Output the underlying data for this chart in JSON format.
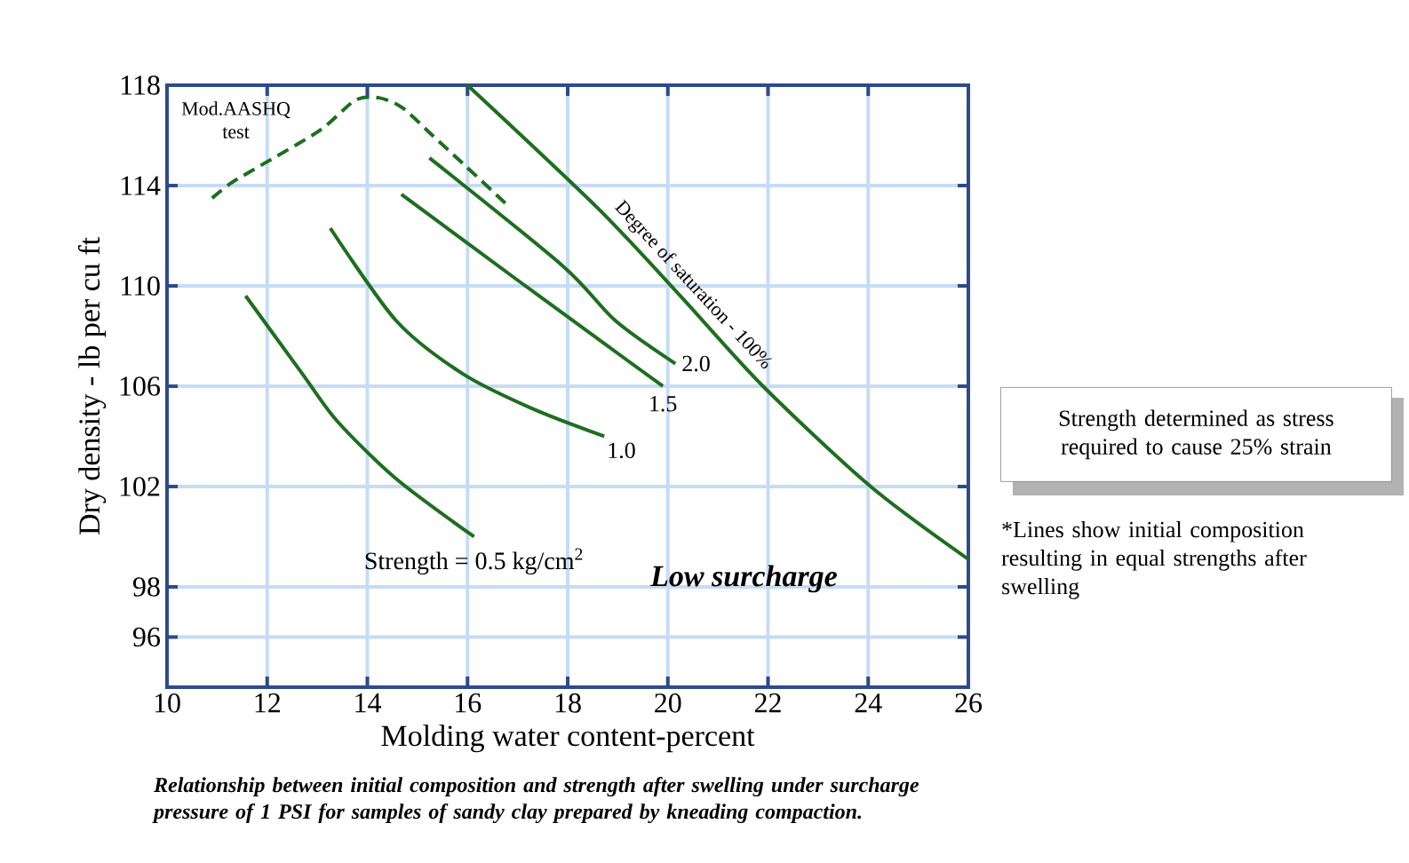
{
  "chart_data": {
    "type": "line",
    "xlabel": "Molding water content-percent",
    "ylabel": "Dry density - lb per cu ft",
    "xlim": [
      10,
      26
    ],
    "xticks": [
      10,
      12,
      14,
      16,
      18,
      20,
      22,
      24,
      26
    ],
    "ylim": [
      94,
      118
    ],
    "yticks": [
      96,
      98,
      102,
      106,
      110,
      114,
      118
    ],
    "grid": true,
    "marker": "none",
    "series": [
      {
        "name": "Strength = 0.5 kg/cm$^{2}$",
        "color": "#1e6e1e",
        "x": [
          11.57,
          12.7,
          13.4,
          14.58,
          16.13
        ],
        "values": [
          109.6,
          106.5,
          104.6,
          102.3,
          100.0
        ]
      },
      {
        "name": "1.0",
        "color": "#1e6e1e",
        "x": [
          13.26,
          14.58,
          15.9,
          17.3,
          18.73
        ],
        "values": [
          112.3,
          108.6,
          106.5,
          105.1,
          104.0
        ]
      },
      {
        "name": "1.5",
        "color": "#1e6e1e",
        "x": [
          14.68,
          16.95,
          18.73,
          19.9
        ],
        "values": [
          113.65,
          110.3,
          107.7,
          106.0
        ]
      },
      {
        "name": "2.0",
        "color": "#1e6e1e",
        "x": [
          15.24,
          17.9,
          18.96,
          20.15
        ],
        "values": [
          115.1,
          110.8,
          108.6,
          106.9
        ]
      },
      {
        "name": "Degree of saturation - 100%",
        "color": "#1e6e1e",
        "x": [
          16.0,
          18.6,
          20.25,
          21.9,
          24.05,
          26.0
        ],
        "values": [
          118.0,
          113.1,
          109.6,
          106.0,
          102.0,
          99.1
        ]
      },
      {
        "name": "Mod.AASHQ test",
        "color": "#1e6e1e",
        "line_style": "dashed",
        "x": [
          10.9,
          11.28,
          11.87,
          13.05,
          13.76,
          14.23,
          14.7,
          15.3,
          15.95,
          16.78
        ],
        "values": [
          113.5,
          114.1,
          114.8,
          116.2,
          117.4,
          117.5,
          117.1,
          116.0,
          114.8,
          113.25
        ]
      }
    ],
    "annotations": [
      "Low surcharge",
      "Strength determined  as stress required to cause 25% strain",
      "*Lines show initial composition resulting in equal strengths after swelling",
      "Relationship between initial composition and strength after swelling under surcharge pressure of 1 PSI for samples of sandy clay prepared by kneading compaction."
    ]
  }
}
